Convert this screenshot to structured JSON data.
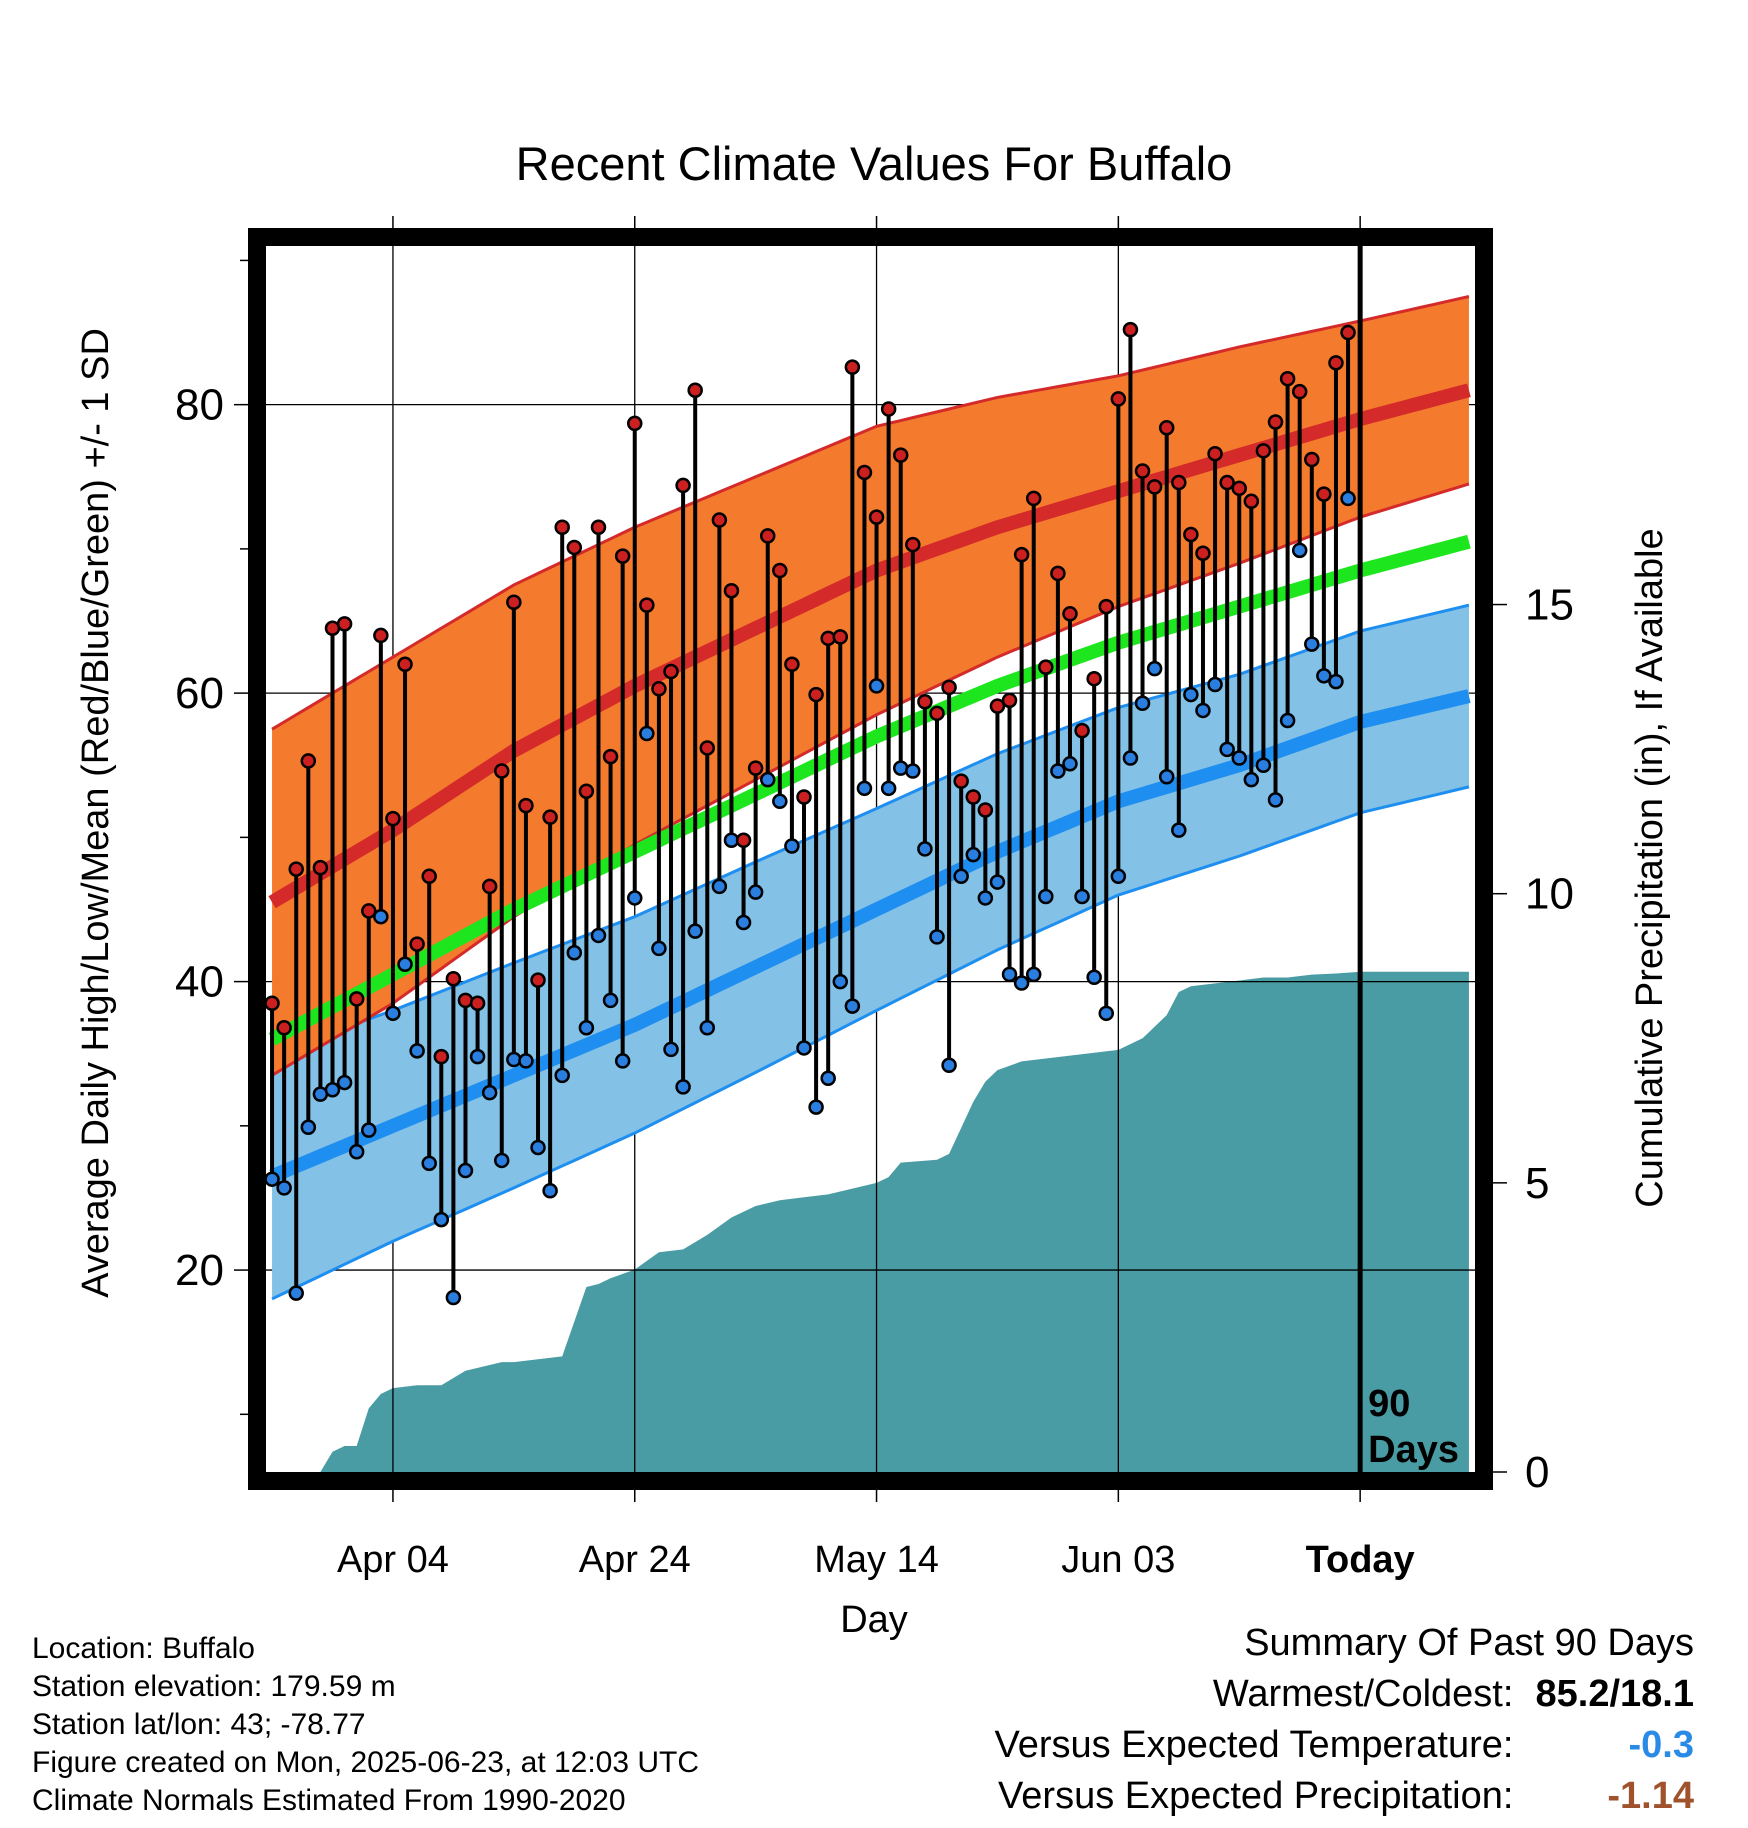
{
  "colors": {
    "high_band": "#f47a2e",
    "high_mean": "#d42a2a",
    "low_band": "#83c1e6",
    "low_mean": "#1e8ff0",
    "mean": "#1ee61e",
    "precip": "#4a9ca4",
    "high_dot": "#cc2020",
    "low_dot": "#2a7ee0",
    "today_line": "#000000"
  },
  "chart_data": {
    "type": "line",
    "title": "Recent Climate Values For Buffalo",
    "xlabel": "Day",
    "ylabel": "Average Daily High/Low/Mean (Red/Blue/Green) +/- 1 SD",
    "ylabel_right": "Cumulative Precipitation (in), If Available",
    "x_tick_labels": [
      "Apr 04",
      "Apr 24",
      "May 14",
      "Jun 03",
      "Today"
    ],
    "x_tick_days": [
      10,
      30,
      50,
      70,
      90
    ],
    "x_range_days": [
      -0.5,
      99.5
    ],
    "ylim": [
      6,
      91
    ],
    "y_ticks": [
      20,
      40,
      60,
      80
    ],
    "y_right_range": [
      0,
      21.2
    ],
    "y_right_ticks": [
      0,
      5,
      10,
      15
    ],
    "today_label": "90\nDays",
    "normals": {
      "day": [
        0,
        10,
        20,
        30,
        40,
        50,
        60,
        70,
        80,
        90,
        99
      ],
      "high_mean": [
        45.5,
        50.5,
        56.0,
        60.5,
        64.5,
        68.5,
        71.5,
        74.0,
        76.5,
        79.0,
        81.0
      ],
      "high_sd": [
        12.0,
        12.0,
        11.5,
        11.0,
        10.5,
        10.0,
        9.0,
        8.0,
        7.5,
        6.8,
        6.5
      ],
      "low_mean": [
        26.5,
        30.0,
        33.5,
        37.0,
        41.0,
        45.0,
        49.0,
        52.5,
        55.0,
        58.0,
        59.8
      ],
      "low_sd": [
        8.5,
        8.0,
        7.8,
        7.5,
        7.3,
        7.0,
        6.8,
        6.5,
        6.3,
        6.3,
        6.3
      ],
      "mean": [
        36.0,
        40.5,
        45.0,
        49.0,
        53.0,
        57.0,
        60.5,
        63.5,
        66.0,
        68.5,
        70.5
      ]
    },
    "series": [
      {
        "name": "High",
        "values": [
          38.5,
          36.8,
          47.8,
          55.3,
          47.9,
          64.5,
          64.8,
          38.8,
          44.9,
          64.0,
          51.3,
          62.0,
          42.6,
          47.3,
          34.8,
          40.2,
          38.7,
          38.5,
          46.6,
          54.6,
          66.3,
          52.2,
          40.1,
          51.4,
          71.5,
          70.1,
          53.2,
          71.5,
          55.6,
          69.5,
          78.7,
          66.1,
          60.3,
          61.5,
          74.4,
          81.0,
          56.2,
          72.0,
          67.1,
          49.8,
          54.8,
          70.9,
          68.5,
          62.0,
          52.8,
          59.9,
          63.8,
          63.9,
          82.6,
          75.3,
          72.2,
          79.7,
          76.5,
          70.3,
          59.4,
          58.6,
          60.4,
          53.9,
          52.8,
          51.9,
          59.1,
          59.5,
          69.6,
          73.5,
          61.8,
          68.3,
          65.5,
          57.4,
          61.0,
          66.0,
          80.4,
          85.2,
          75.4,
          74.3,
          78.4,
          74.6,
          71.0,
          69.7,
          76.6,
          74.6,
          74.2,
          73.3,
          76.8,
          78.8,
          81.8,
          80.9,
          76.2,
          73.8,
          82.9,
          85.0
        ]
      },
      {
        "name": "Low",
        "values": [
          26.3,
          25.7,
          18.4,
          29.9,
          32.2,
          32.5,
          33.0,
          28.2,
          29.7,
          44.5,
          37.8,
          41.2,
          35.2,
          27.4,
          23.5,
          18.1,
          26.9,
          34.8,
          32.3,
          27.6,
          34.6,
          34.5,
          28.5,
          25.5,
          33.5,
          42.0,
          36.8,
          43.2,
          38.7,
          34.5,
          45.8,
          57.2,
          42.3,
          35.3,
          32.7,
          43.5,
          36.8,
          46.6,
          49.8,
          44.1,
          46.2,
          54.0,
          52.5,
          49.4,
          35.4,
          31.3,
          33.3,
          40.0,
          38.3,
          53.4,
          60.5,
          53.4,
          54.8,
          54.6,
          49.2,
          43.1,
          34.2,
          47.3,
          48.8,
          45.8,
          46.9,
          40.5,
          39.9,
          40.5,
          45.9,
          54.6,
          55.1,
          45.9,
          40.3,
          37.8,
          47.3,
          55.5,
          59.3,
          61.7,
          54.2,
          50.5,
          59.9,
          58.8,
          60.6,
          56.1,
          55.5,
          54.0,
          55.0,
          52.6,
          58.1,
          69.9,
          63.4,
          61.2,
          60.8,
          73.5
        ]
      },
      {
        "name": "Precipitation",
        "day": [
          0,
          4,
          5,
          6,
          7,
          8,
          9,
          10,
          12,
          14,
          16,
          18,
          19,
          20,
          22,
          24,
          26,
          27,
          28,
          30,
          32,
          34,
          36,
          38,
          40,
          42,
          44,
          46,
          48,
          50,
          51,
          52,
          55,
          56,
          58,
          59,
          60,
          62,
          64,
          66,
          68,
          70,
          72,
          74,
          75,
          76,
          78,
          80,
          82,
          84,
          86,
          88,
          90,
          99
        ],
        "values": [
          0,
          0,
          0.35,
          0.45,
          0.45,
          1.1,
          1.35,
          1.45,
          1.5,
          1.5,
          1.75,
          1.85,
          1.9,
          1.9,
          1.95,
          2.0,
          3.2,
          3.25,
          3.35,
          3.5,
          3.8,
          3.85,
          4.1,
          4.4,
          4.6,
          4.7,
          4.75,
          4.8,
          4.9,
          5.0,
          5.1,
          5.35,
          5.4,
          5.5,
          6.4,
          6.75,
          6.95,
          7.1,
          7.15,
          7.2,
          7.25,
          7.3,
          7.5,
          7.9,
          8.3,
          8.4,
          8.45,
          8.5,
          8.55,
          8.55,
          8.6,
          8.62,
          8.65,
          8.65
        ]
      }
    ]
  },
  "meta": {
    "location": "Location: Buffalo",
    "elevation": "Station elevation: 179.59 m",
    "latlon": "Station lat/lon: 43; -78.77",
    "created": "Figure created on Mon, 2025-06-23, at 12:03 UTC",
    "normals": "Climate Normals Estimated From 1990-2020"
  },
  "summary": {
    "heading": "Summary Of Past 90 Days",
    "warmest_label": "Warmest/Coldest:",
    "warmest_value": "85.2/18.1",
    "temp_label": "Versus Expected Temperature:",
    "temp_value": "-0.3",
    "precip_label": "Versus Expected Precipitation:",
    "precip_value": "-1.14"
  }
}
